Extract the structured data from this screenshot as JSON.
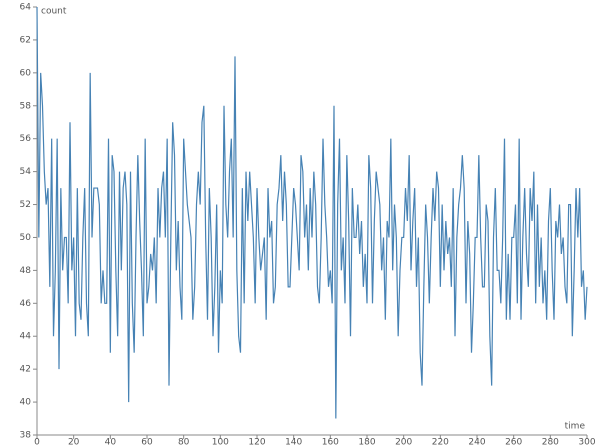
{
  "chart_data": {
    "type": "line",
    "x_label": "time",
    "y_label": "count",
    "xlim": [
      0,
      300
    ],
    "ylim": [
      38,
      64
    ],
    "xticks": [
      0,
      20,
      40,
      60,
      80,
      100,
      120,
      140,
      160,
      180,
      200,
      220,
      240,
      260,
      280,
      300
    ],
    "yticks": [
      38,
      40,
      42,
      44,
      46,
      48,
      50,
      52,
      54,
      56,
      58,
      60,
      62,
      64
    ],
    "x": [
      0,
      1,
      2,
      3,
      4,
      5,
      6,
      7,
      8,
      9,
      10,
      11,
      12,
      13,
      14,
      15,
      16,
      17,
      18,
      19,
      20,
      21,
      22,
      23,
      24,
      25,
      26,
      27,
      28,
      29,
      30,
      31,
      32,
      33,
      34,
      35,
      36,
      37,
      38,
      39,
      40,
      41,
      42,
      43,
      44,
      45,
      46,
      47,
      48,
      49,
      50,
      51,
      52,
      53,
      54,
      55,
      56,
      57,
      58,
      59,
      60,
      61,
      62,
      63,
      64,
      65,
      66,
      67,
      68,
      69,
      70,
      71,
      72,
      73,
      74,
      75,
      76,
      77,
      78,
      79,
      80,
      81,
      82,
      83,
      84,
      85,
      86,
      87,
      88,
      89,
      90,
      91,
      92,
      93,
      94,
      95,
      96,
      97,
      98,
      99,
      100,
      101,
      102,
      103,
      104,
      105,
      106,
      107,
      108,
      109,
      110,
      111,
      112,
      113,
      114,
      115,
      116,
      117,
      118,
      119,
      120,
      121,
      122,
      123,
      124,
      125,
      126,
      127,
      128,
      129,
      130,
      131,
      132,
      133,
      134,
      135,
      136,
      137,
      138,
      139,
      140,
      141,
      142,
      143,
      144,
      145,
      146,
      147,
      148,
      149,
      150,
      151,
      152,
      153,
      154,
      155,
      156,
      157,
      158,
      159,
      160,
      161,
      162,
      163,
      164,
      165,
      166,
      167,
      168,
      169,
      170,
      171,
      172,
      173,
      174,
      175,
      176,
      177,
      178,
      179,
      180,
      181,
      182,
      183,
      184,
      185,
      186,
      187,
      188,
      189,
      190,
      191,
      192,
      193,
      194,
      195,
      196,
      197,
      198,
      199,
      200,
      201,
      202,
      203,
      204,
      205,
      206,
      207,
      208,
      209,
      210,
      211,
      212,
      213,
      214,
      215,
      216,
      217,
      218,
      219,
      220,
      221,
      222,
      223,
      224,
      225,
      226,
      227,
      228,
      229,
      230,
      231,
      232,
      233,
      234,
      235,
      236,
      237,
      238,
      239,
      240,
      241,
      242,
      243,
      244,
      245,
      246,
      247,
      248,
      249,
      250,
      251,
      252,
      253,
      254,
      255,
      256,
      257,
      258,
      259,
      260,
      261,
      262,
      263,
      264,
      265,
      266,
      267,
      268,
      269,
      270,
      271,
      272,
      273,
      274,
      275,
      276,
      277,
      278,
      279,
      280,
      281,
      282,
      283,
      284,
      285,
      286,
      287,
      288,
      289,
      290,
      291,
      292,
      293,
      294,
      295,
      296,
      297,
      298,
      299,
      300
    ],
    "series": [
      {
        "color": "#4682b4",
        "values": [
          64,
          50,
          60,
          58,
          54,
          52,
          53,
          47,
          56,
          44,
          48,
          56,
          42,
          53,
          48,
          50,
          50,
          46,
          57,
          48,
          50,
          44,
          53,
          46,
          45,
          50,
          53,
          46,
          44,
          60,
          50,
          53,
          53,
          53,
          52,
          46,
          48,
          46,
          46,
          56,
          43,
          55,
          54,
          48,
          44,
          54,
          48,
          53,
          54,
          52,
          40,
          54,
          46,
          43,
          50,
          55,
          51,
          48,
          44,
          56,
          46,
          47,
          49,
          48,
          50,
          46,
          53,
          50,
          53,
          54,
          50,
          56,
          41,
          50,
          57,
          55,
          48,
          51,
          47,
          45,
          56,
          54,
          52,
          51,
          50,
          45,
          47,
          52,
          54,
          52,
          57,
          58,
          50,
          45,
          53,
          50,
          44,
          47,
          52,
          43,
          48,
          46,
          58,
          52,
          50,
          54,
          56,
          50,
          61,
          48,
          44,
          43,
          53,
          46,
          54,
          51,
          54,
          52,
          50,
          46,
          53,
          50,
          48,
          49,
          50,
          45,
          53,
          50,
          51,
          46,
          47,
          52,
          53,
          55,
          51,
          54,
          52,
          47,
          47,
          50,
          53,
          52,
          50,
          48,
          55,
          54,
          50,
          52,
          48,
          53,
          50,
          54,
          52,
          47,
          46,
          50,
          56,
          52,
          50,
          47,
          48,
          46,
          58,
          39,
          52,
          56,
          48,
          50,
          46,
          55,
          51,
          44,
          53,
          50,
          50,
          52,
          49,
          51,
          47,
          49,
          46,
          55,
          53,
          46,
          51,
          54,
          53,
          52,
          48,
          50,
          45,
          51,
          50,
          56,
          48,
          52,
          50,
          44,
          48,
          50,
          50,
          53,
          51,
          55,
          48,
          51,
          53,
          47,
          50,
          43,
          41,
          47,
          52,
          50,
          46,
          50,
          53,
          51,
          54,
          53,
          47,
          52,
          48,
          51,
          49,
          50,
          47,
          53,
          44,
          50,
          52,
          53,
          55,
          53,
          46,
          51,
          49,
          43,
          46,
          50,
          50,
          55,
          50,
          47,
          47,
          52,
          51,
          44,
          41,
          50,
          53,
          48,
          48,
          46,
          50,
          56,
          45,
          49,
          45,
          50,
          50,
          52,
          46,
          56,
          45,
          50,
          53,
          49,
          47,
          53,
          51,
          54,
          46,
          52,
          47,
          50,
          46,
          48,
          45,
          51,
          53,
          48,
          45,
          51,
          50,
          52,
          49,
          50,
          47,
          46,
          52,
          52,
          44,
          48,
          53,
          50,
          53,
          47,
          48,
          45,
          47
        ]
      }
    ]
  }
}
